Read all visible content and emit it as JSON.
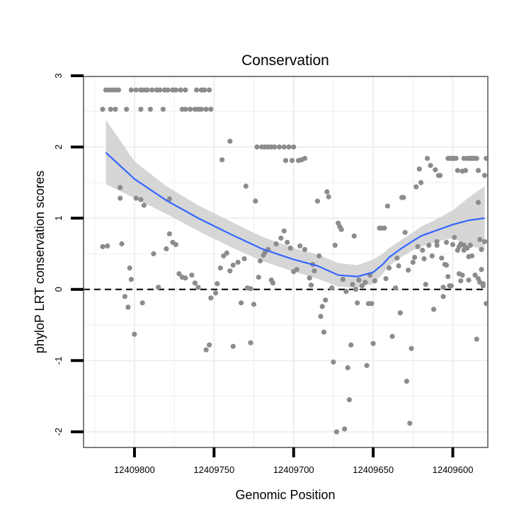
{
  "chart_data": {
    "type": "scatter",
    "title": "Conservation",
    "xlabel": "Genomic Position",
    "ylabel": "phyloP LRT conservation scores",
    "x_reversed": true,
    "xlim": [
      12409832,
      12409578
    ],
    "ylim": [
      -2.22,
      2.99
    ],
    "x_ticks": [
      12409800,
      12409750,
      12409700,
      12409650,
      12409600
    ],
    "x_tick_labels": [
      "12409800",
      "12409750",
      "12409700",
      "12409650",
      "12409600"
    ],
    "y_ticks": [
      -2,
      -1,
      0,
      1,
      2,
      3
    ],
    "y_tick_labels": [
      "-2",
      "-1",
      "0",
      "1",
      "2",
      "3"
    ],
    "reference_line": {
      "y": 0,
      "style": "dashed"
    },
    "colors": {
      "points": "#8c8c8c",
      "smooth": "#3366ff",
      "band": "#cfcfcf",
      "grid": "#eeeeee",
      "border": "#7f7f7f"
    },
    "points": [
      [
        12409818,
        2.8
      ],
      [
        12409816,
        2.8
      ],
      [
        12409814,
        2.8
      ],
      [
        12409812,
        2.8
      ],
      [
        12409810,
        2.8
      ],
      [
        12409820,
        2.53
      ],
      [
        12409815,
        2.53
      ],
      [
        12409812,
        2.53
      ],
      [
        12409802,
        2.8
      ],
      [
        12409799,
        2.8
      ],
      [
        12409796,
        2.8
      ],
      [
        12409794,
        2.8
      ],
      [
        12409792,
        2.8
      ],
      [
        12409789,
        2.8
      ],
      [
        12409786,
        2.8
      ],
      [
        12409784,
        2.8
      ],
      [
        12409781,
        2.8
      ],
      [
        12409779,
        2.8
      ],
      [
        12409776,
        2.8
      ],
      [
        12409774,
        2.8
      ],
      [
        12409771,
        2.8
      ],
      [
        12409768,
        2.8
      ],
      [
        12409761,
        2.8
      ],
      [
        12409758,
        2.8
      ],
      [
        12409756,
        2.8
      ],
      [
        12409753,
        2.8
      ],
      [
        12409805,
        2.53
      ],
      [
        12409796,
        2.53
      ],
      [
        12409790,
        2.53
      ],
      [
        12409782,
        2.53
      ],
      [
        12409770,
        2.53
      ],
      [
        12409768,
        2.53
      ],
      [
        12409765,
        2.53
      ],
      [
        12409762,
        2.53
      ],
      [
        12409760,
        2.53
      ],
      [
        12409758,
        2.53
      ],
      [
        12409755,
        2.53
      ],
      [
        12409752,
        2.53
      ],
      [
        12409809,
        1.43
      ],
      [
        12409809,
        1.28
      ],
      [
        12409799,
        1.28
      ],
      [
        12409796,
        1.26
      ],
      [
        12409794,
        1.18
      ],
      [
        12409778,
        1.27
      ],
      [
        12409820,
        0.6
      ],
      [
        12409817,
        0.61
      ],
      [
        12409808,
        0.64
      ],
      [
        12409803,
        0.3
      ],
      [
        12409802,
        0.14
      ],
      [
        12409806,
        -0.1
      ],
      [
        12409804,
        -0.25
      ],
      [
        12409800,
        -0.63
      ],
      [
        12409795,
        -0.19
      ],
      [
        12409788,
        0.5
      ],
      [
        12409785,
        0.03
      ],
      [
        12409780,
        0.57
      ],
      [
        12409778,
        0.78
      ],
      [
        12409776,
        0.66
      ],
      [
        12409774,
        0.63
      ],
      [
        12409772,
        0.22
      ],
      [
        12409770,
        0.17
      ],
      [
        12409768,
        0.16
      ],
      [
        12409764,
        0.2
      ],
      [
        12409762,
        0.09
      ],
      [
        12409760,
        0.03
      ],
      [
        12409755,
        -0.85
      ],
      [
        12409753,
        -0.78
      ],
      [
        12409752,
        -0.12
      ],
      [
        12409748,
        0.08
      ],
      [
        12409749,
        -0.05
      ],
      [
        12409746,
        0.3
      ],
      [
        12409744,
        0.47
      ],
      [
        12409742,
        0.51
      ],
      [
        12409740,
        0.26
      ],
      [
        12409738,
        -0.8
      ],
      [
        12409738,
        0.34
      ],
      [
        12409735,
        0.38
      ],
      [
        12409733,
        -0.19
      ],
      [
        12409731,
        0.43
      ],
      [
        12409729,
        0.02
      ],
      [
        12409727,
        0.01
      ],
      [
        12409725,
        -0.21
      ],
      [
        12409722,
        0.17
      ],
      [
        12409721,
        0.4
      ],
      [
        12409719,
        0.48
      ],
      [
        12409718,
        0.52
      ],
      [
        12409716,
        0.56
      ],
      [
        12409714,
        0.13
      ],
      [
        12409713,
        0.09
      ],
      [
        12409711,
        0.64
      ],
      [
        12409708,
        0.72
      ],
      [
        12409706,
        0.82
      ],
      [
        12409704,
        0.66
      ],
      [
        12409702,
        0.58
      ],
      [
        12409700,
        0.25
      ],
      [
        12409698,
        0.28
      ],
      [
        12409745,
        1.82
      ],
      [
        12409740,
        2.08
      ],
      [
        12409730,
        1.45
      ],
      [
        12409727,
        -0.75
      ],
      [
        12409724,
        1.24
      ],
      [
        12409723,
        2.0
      ],
      [
        12409720,
        2.0
      ],
      [
        12409718,
        2.0
      ],
      [
        12409716,
        2.0
      ],
      [
        12409714,
        2.0
      ],
      [
        12409712,
        2.0
      ],
      [
        12409709,
        2.0
      ],
      [
        12409706,
        2.0
      ],
      [
        12409703,
        2.0
      ],
      [
        12409700,
        2.0
      ],
      [
        12409705,
        1.81
      ],
      [
        12409701,
        1.81
      ],
      [
        12409697,
        1.81
      ],
      [
        12409695,
        1.82
      ],
      [
        12409693,
        1.84
      ],
      [
        12409696,
        0.61
      ],
      [
        12409693,
        0.56
      ],
      [
        12409690,
        0.16
      ],
      [
        12409689,
        0.06
      ],
      [
        12409688,
        0.35
      ],
      [
        12409687,
        0.26
      ],
      [
        12409685,
        1.24
      ],
      [
        12409684,
        0.47
      ],
      [
        12409683,
        -0.38
      ],
      [
        12409682,
        -0.24
      ],
      [
        12409681,
        -0.6
      ],
      [
        12409680,
        -0.15
      ],
      [
        12409679,
        1.37
      ],
      [
        12409678,
        1.3
      ],
      [
        12409676,
        0.02
      ],
      [
        12409675,
        -1.02
      ],
      [
        12409674,
        0.62
      ],
      [
        12409673,
        -2.0
      ],
      [
        12409672,
        0.93
      ],
      [
        12409671,
        0.88
      ],
      [
        12409670,
        0.84
      ],
      [
        12409669,
        0.14
      ],
      [
        12409668,
        -1.96
      ],
      [
        12409667,
        -0.03
      ],
      [
        12409666,
        -1.1
      ],
      [
        12409665,
        -1.55
      ],
      [
        12409664,
        -0.78
      ],
      [
        12409663,
        0.07
      ],
      [
        12409662,
        0.75
      ],
      [
        12409661,
        0.0
      ],
      [
        12409660,
        -0.19
      ],
      [
        12409659,
        0.13
      ],
      [
        12409657,
        0.05
      ],
      [
        12409655,
        0.1
      ],
      [
        12409654,
        -1.07
      ],
      [
        12409653,
        -0.2
      ],
      [
        12409652,
        0.2
      ],
      [
        12409651,
        -0.2
      ],
      [
        12409650,
        -0.76
      ],
      [
        12409649,
        0.12
      ],
      [
        12409646,
        0.86
      ],
      [
        12409645,
        0.86
      ],
      [
        12409643,
        0.86
      ],
      [
        12409642,
        0.15
      ],
      [
        12409641,
        1.17
      ],
      [
        12409640,
        0.3
      ],
      [
        12409638,
        -0.66
      ],
      [
        12409636,
        0.02
      ],
      [
        12409635,
        0.44
      ],
      [
        12409634,
        0.33
      ],
      [
        12409633,
        -0.33
      ],
      [
        12409632,
        1.29
      ],
      [
        12409631,
        1.29
      ],
      [
        12409630,
        0.8
      ],
      [
        12409629,
        -1.29
      ],
      [
        12409628,
        0.27
      ],
      [
        12409627,
        -1.88
      ],
      [
        12409626,
        -0.83
      ],
      [
        12409625,
        0.38
      ],
      [
        12409624,
        0.45
      ],
      [
        12409623,
        1.44
      ],
      [
        12409622,
        0.6
      ],
      [
        12409621,
        1.69
      ],
      [
        12409620,
        1.5
      ],
      [
        12409619,
        0.55
      ],
      [
        12409618,
        0.43
      ],
      [
        12409617,
        0.07
      ],
      [
        12409616,
        1.84
      ],
      [
        12409615,
        0.62
      ],
      [
        12409614,
        1.74
      ],
      [
        12409613,
        0.47
      ],
      [
        12409612,
        -0.28
      ],
      [
        12409611,
        1.68
      ],
      [
        12409610,
        0.67
      ],
      [
        12409609,
        1.6
      ],
      [
        12409608,
        1.6
      ],
      [
        12409607,
        0.44
      ],
      [
        12409606,
        0.03
      ],
      [
        12409605,
        0.35
      ],
      [
        12409604,
        0.66
      ],
      [
        12409603,
        1.84
      ],
      [
        12409602,
        1.84
      ],
      [
        12409601,
        1.84
      ],
      [
        12409600,
        1.84
      ],
      [
        12409599,
        0.73
      ],
      [
        12409598,
        1.84
      ],
      [
        12409597,
        1.67
      ],
      [
        12409596,
        0.6
      ],
      [
        12409595,
        0.64
      ],
      [
        12409594,
        0.2
      ],
      [
        12409593,
        1.84
      ],
      [
        12409592,
        1.67
      ],
      [
        12409591,
        1.84
      ],
      [
        12409590,
        1.84
      ],
      [
        12409589,
        1.84
      ],
      [
        12409588,
        1.84
      ],
      [
        12409587,
        1.84
      ],
      [
        12409586,
        1.84
      ],
      [
        12409585,
        1.84
      ],
      [
        12409584,
        1.67
      ],
      [
        12409583,
        0.7
      ],
      [
        12409582,
        0.56
      ],
      [
        12409581,
        0.08
      ],
      [
        12409580,
        0.67
      ],
      [
        12409579,
        1.84
      ],
      [
        12409610,
        0.62
      ],
      [
        12409606,
        -0.1
      ],
      [
        12409604,
        0.34
      ],
      [
        12409603,
        0.18
      ],
      [
        12409602,
        0.05
      ],
      [
        12409601,
        0.05
      ],
      [
        12409600,
        0.63
      ],
      [
        12409599,
        1.84
      ],
      [
        12409597,
        0.55
      ],
      [
        12409596,
        0.22
      ],
      [
        12409595,
        0.12
      ],
      [
        12409594,
        1.66
      ],
      [
        12409593,
        0.62
      ],
      [
        12409592,
        0.59
      ],
      [
        12409591,
        0.58
      ],
      [
        12409590,
        0.46
      ],
      [
        12409589,
        0.62
      ],
      [
        12409588,
        0.47
      ],
      [
        12409587,
        1.84
      ],
      [
        12409586,
        0.2
      ],
      [
        12409585,
        -0.7
      ],
      [
        12409584,
        0.15
      ],
      [
        12409583,
        0.1
      ],
      [
        12409582,
        0.28
      ],
      [
        12409581,
        0.05
      ],
      [
        12409580,
        1.6
      ],
      [
        12409579,
        -0.2
      ],
      [
        12409593,
        0.55
      ],
      [
        12409590,
        0.13
      ],
      [
        12409589,
        1.84
      ],
      [
        12409584,
        1.22
      ]
    ],
    "smooth": {
      "x": [
        12409818,
        12409800,
        12409780,
        12409760,
        12409740,
        12409720,
        12409700,
        12409685,
        12409672,
        12409660,
        12409650,
        12409644,
        12409640,
        12409632,
        12409625,
        12409620,
        12409610,
        12409600,
        12409590,
        12409580
      ],
      "y": [
        1.92,
        1.55,
        1.25,
        1.0,
        0.78,
        0.57,
        0.42,
        0.33,
        0.2,
        0.18,
        0.24,
        0.35,
        0.45,
        0.58,
        0.68,
        0.75,
        0.83,
        0.91,
        0.97,
        1.0
      ],
      "lower": [
        1.48,
        1.28,
        1.06,
        0.82,
        0.6,
        0.4,
        0.25,
        0.15,
        0.04,
        0.02,
        0.08,
        0.22,
        0.33,
        0.46,
        0.55,
        0.6,
        0.67,
        0.72,
        0.62,
        0.55
      ],
      "upper": [
        2.38,
        1.8,
        1.45,
        1.18,
        0.96,
        0.74,
        0.58,
        0.49,
        0.37,
        0.34,
        0.42,
        0.5,
        0.58,
        0.7,
        0.8,
        0.88,
        0.99,
        1.11,
        1.29,
        1.45
      ]
    }
  }
}
